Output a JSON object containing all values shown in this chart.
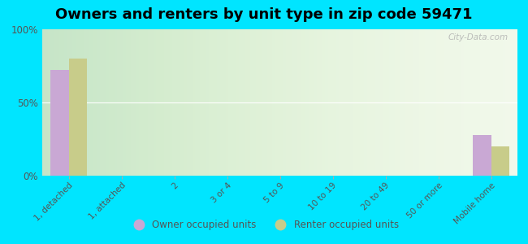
{
  "title": "Owners and renters by unit type in zip code 59471",
  "categories": [
    "1, detached",
    "1, attached",
    "2",
    "3 or 4",
    "5 to 9",
    "10 to 19",
    "20 to 49",
    "50 or more",
    "Mobile home"
  ],
  "owner_values": [
    72,
    0,
    0,
    0,
    0,
    0,
    0,
    0,
    28
  ],
  "renter_values": [
    80,
    0,
    0,
    0,
    0,
    0,
    0,
    0,
    20
  ],
  "owner_color": "#c9a8d4",
  "renter_color": "#c8cc8a",
  "background_outer": "#00e5ff",
  "yticks": [
    0,
    50,
    100
  ],
  "ylim": [
    0,
    100
  ],
  "bar_width": 0.35,
  "legend_owner": "Owner occupied units",
  "legend_renter": "Renter occupied units",
  "title_fontsize": 13,
  "watermark": "City-Data.com"
}
